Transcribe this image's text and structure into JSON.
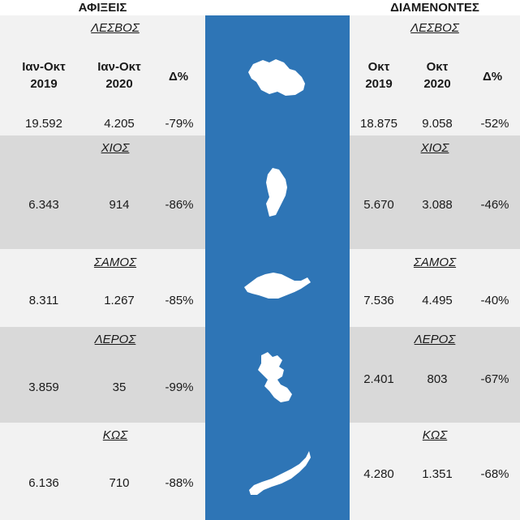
{
  "titles": {
    "left": "ΑΦΙΞΕΙΣ",
    "right": "ΔΙΑΜΕΝΟΝΤΕΣ"
  },
  "headers": {
    "left": {
      "col1": [
        "Ιαν-Οκτ",
        "2019"
      ],
      "col2": [
        "Ιαν-Οκτ",
        "2020"
      ],
      "col3": "Δ%"
    },
    "right": {
      "col1": [
        "Οκτ",
        "2019"
      ],
      "col2": [
        "Οκτ",
        "2020"
      ],
      "col3": "Δ%"
    }
  },
  "islands": [
    {
      "name": "ΛΕΣΒΟΣ",
      "arrivals": {
        "y2019": "19.592",
        "y2020": "4.205",
        "delta": "-79%"
      },
      "residents": {
        "y2019": "18.875",
        "y2020": "9.058",
        "delta": "-52%"
      }
    },
    {
      "name": "ΧΙΟΣ",
      "arrivals": {
        "y2019": "6.343",
        "y2020": "914",
        "delta": "-86%"
      },
      "residents": {
        "y2019": "5.670",
        "y2020": "3.088",
        "delta": "-46%"
      }
    },
    {
      "name": "ΣΑΜΟΣ",
      "arrivals": {
        "y2019": "8.311",
        "y2020": "1.267",
        "delta": "-85%"
      },
      "residents": {
        "y2019": "7.536",
        "y2020": "4.495",
        "delta": "-40%"
      }
    },
    {
      "name": "ΛΕΡΟΣ",
      "arrivals": {
        "y2019": "3.859",
        "y2020": "35",
        "delta": "-99%"
      },
      "residents": {
        "y2019": "2.401",
        "y2020": "803",
        "delta": "-67%"
      }
    },
    {
      "name": "ΚΩΣ",
      "arrivals": {
        "y2019": "6.136",
        "y2020": "710",
        "delta": "-88%"
      },
      "residents": {
        "y2019": "4.280",
        "y2020": "1.351",
        "delta": "-68%"
      }
    }
  ],
  "colors": {
    "map_strip": "#2e75b6",
    "row_light": "#f2f2f2",
    "row_dark": "#d9d9d9",
    "island_fill": "#ffffff"
  },
  "icons": [
    "lesvos-island-icon",
    "chios-island-icon",
    "samos-island-icon",
    "leros-island-icon",
    "kos-island-icon"
  ]
}
